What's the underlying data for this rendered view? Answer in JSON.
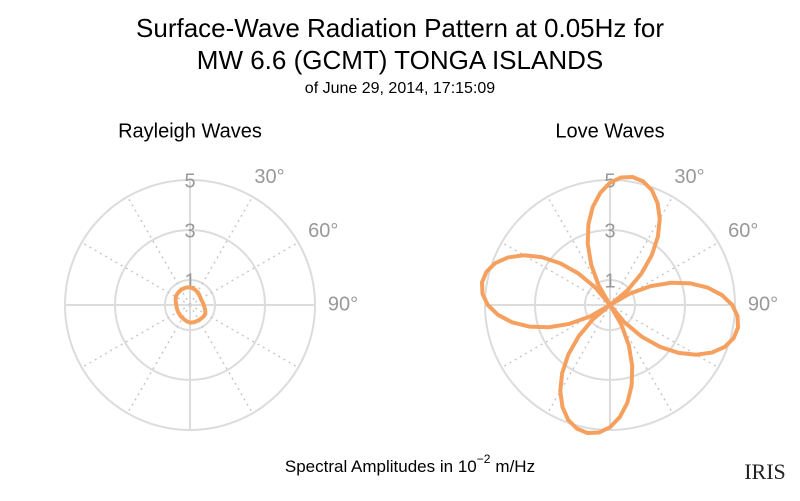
{
  "title": [
    "Surface-Wave Radiation Pattern at 0.05Hz for",
    "MW 6.6 (GCMT) TONGA ISLANDS"
  ],
  "subtitle": "of June 29, 2014, 17:15:09",
  "footer": {
    "text": "Spectral Amplitudes in 10",
    "exponent": "−2",
    "unit": "m/Hz"
  },
  "logo": "IRIS",
  "chart_data": [
    {
      "type": "polar",
      "title": "Rayleigh Waves",
      "color": "#f5a05f",
      "smooth": true,
      "theta": [
        0,
        30,
        60,
        90,
        120,
        150,
        180,
        210,
        240,
        270,
        300,
        330
      ],
      "values": [
        0.7,
        0.6,
        0.5,
        0.55,
        0.7,
        0.7,
        0.7,
        0.6,
        0.55,
        0.55,
        0.65,
        0.7
      ],
      "rlim": [
        0,
        5
      ],
      "rticks": [
        1,
        3,
        5
      ],
      "thetaticks": [
        {
          "value": 0,
          "label": null
        },
        {
          "value": 30,
          "label": "30°"
        },
        {
          "value": 60,
          "label": "60°"
        },
        {
          "value": 90,
          "label": "90°"
        },
        {
          "value": 120,
          "label": null
        },
        {
          "value": 150,
          "label": null
        },
        {
          "value": 180,
          "label": null
        },
        {
          "value": 210,
          "label": null
        },
        {
          "value": 240,
          "label": null
        },
        {
          "value": 270,
          "label": null
        },
        {
          "value": 300,
          "label": null
        },
        {
          "value": 330,
          "label": null
        }
      ]
    },
    {
      "type": "polar",
      "title": "Love Waves",
      "color": "#f5a05f",
      "smooth": false,
      "theta": [
        0,
        5,
        10,
        15,
        20,
        25,
        30,
        35,
        40,
        45,
        50,
        55,
        60,
        65,
        70,
        75,
        80,
        85,
        90,
        95,
        100,
        105,
        110,
        115,
        120,
        125,
        130,
        135,
        140,
        145,
        150,
        155,
        160,
        165,
        170,
        175,
        180,
        185,
        190,
        195,
        200,
        205,
        210,
        215,
        220,
        225,
        230,
        235,
        240,
        245,
        250,
        255,
        260,
        265,
        270,
        275,
        280,
        285,
        290,
        295,
        300,
        305,
        310,
        315,
        320,
        325,
        330,
        335,
        340,
        345,
        350,
        355
      ],
      "values": [
        4.89,
        5.12,
        5.2,
        5.12,
        4.89,
        4.5,
        3.98,
        3.34,
        2.6,
        1.78,
        0.9,
        0,
        0.9,
        1.78,
        2.6,
        3.34,
        3.98,
        4.5,
        4.89,
        5.12,
        5.2,
        5.12,
        4.89,
        4.5,
        3.98,
        3.34,
        2.6,
        1.78,
        0.9,
        0,
        0.9,
        1.78,
        2.6,
        3.34,
        3.98,
        4.5,
        4.89,
        5.12,
        5.2,
        5.12,
        4.89,
        4.5,
        3.98,
        3.34,
        2.6,
        1.78,
        0.9,
        0,
        0.9,
        1.78,
        2.6,
        3.34,
        3.98,
        4.5,
        4.89,
        5.12,
        5.2,
        5.12,
        4.89,
        4.5,
        3.98,
        3.34,
        2.6,
        1.78,
        0.9,
        0,
        0.9,
        1.78,
        2.6,
        3.34,
        3.98,
        4.5
      ],
      "rlim": [
        0,
        5
      ],
      "rticks": [
        1,
        3,
        5
      ],
      "thetaticks": [
        {
          "value": 0,
          "label": null
        },
        {
          "value": 30,
          "label": "30°"
        },
        {
          "value": 60,
          "label": "60°"
        },
        {
          "value": 90,
          "label": "90°"
        },
        {
          "value": 120,
          "label": null
        },
        {
          "value": 150,
          "label": null
        },
        {
          "value": 180,
          "label": null
        },
        {
          "value": 210,
          "label": null
        },
        {
          "value": 240,
          "label": null
        },
        {
          "value": 270,
          "label": null
        },
        {
          "value": 300,
          "label": null
        },
        {
          "value": 330,
          "label": null
        }
      ]
    }
  ]
}
